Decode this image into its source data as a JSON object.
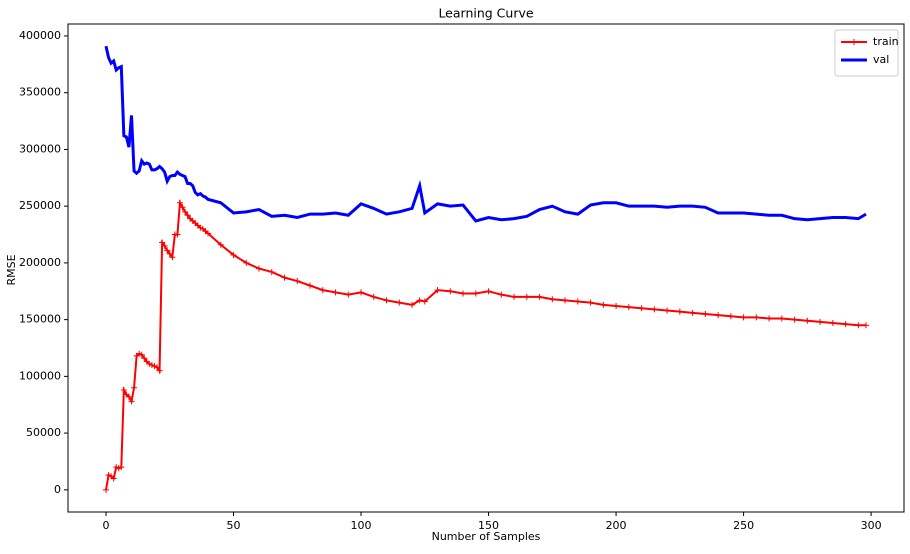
{
  "chart_data": {
    "type": "line",
    "title": "Learning Curve",
    "x_label": "Number of Samples",
    "y_label": "RMSE",
    "x": [
      0,
      1,
      2,
      3,
      4,
      5,
      6,
      7,
      8,
      9,
      10,
      11,
      12,
      13,
      14,
      15,
      16,
      17,
      18,
      19,
      20,
      21,
      22,
      23,
      24,
      25,
      26,
      27,
      28,
      29,
      30,
      31,
      32,
      33,
      34,
      35,
      36,
      37,
      38,
      39,
      40,
      45,
      50,
      55,
      60,
      65,
      70,
      75,
      80,
      85,
      90,
      95,
      100,
      105,
      110,
      115,
      120,
      123,
      125,
      130,
      135,
      140,
      145,
      150,
      155,
      160,
      165,
      170,
      175,
      180,
      185,
      190,
      195,
      200,
      205,
      210,
      215,
      220,
      225,
      230,
      235,
      240,
      245,
      250,
      255,
      260,
      265,
      270,
      275,
      280,
      285,
      290,
      295,
      298
    ],
    "series": [
      {
        "name": "train",
        "color": "#ff0000",
        "marker": "+",
        "values": [
          0,
          13000,
          12000,
          10000,
          20000,
          19000,
          20000,
          88000,
          84000,
          82000,
          78000,
          90000,
          118000,
          120000,
          119000,
          116000,
          113000,
          111000,
          110000,
          109000,
          108000,
          105000,
          218000,
          215000,
          211000,
          208000,
          205000,
          225000,
          225000,
          253000,
          249000,
          245000,
          242000,
          239000,
          237000,
          235000,
          233000,
          231000,
          230000,
          228000,
          226000,
          216000,
          207000,
          200000,
          195000,
          192000,
          187000,
          184000,
          180000,
          176000,
          174000,
          172000,
          174000,
          170000,
          167000,
          165000,
          163000,
          167000,
          166000,
          176000,
          175000,
          173000,
          173000,
          175000,
          172000,
          170000,
          170000,
          170000,
          168000,
          167000,
          166000,
          165000,
          163000,
          162000,
          161000,
          160000,
          159000,
          158000,
          157000,
          156000,
          155000,
          154000,
          153000,
          152000,
          152000,
          151000,
          151000,
          150000,
          149000,
          148000,
          147000,
          146000,
          145000,
          145000
        ]
      },
      {
        "name": "val",
        "color": "#0000ff",
        "values": [
          391000,
          381000,
          376000,
          378000,
          370000,
          372000,
          373000,
          312000,
          311000,
          302000,
          330000,
          281000,
          279000,
          281000,
          290000,
          287000,
          288000,
          287000,
          282000,
          282000,
          283000,
          285000,
          283000,
          280000,
          272000,
          276000,
          277000,
          277000,
          280000,
          278000,
          277000,
          276000,
          270000,
          270000,
          268000,
          262000,
          260000,
          261000,
          259000,
          258000,
          256000,
          253000,
          244000,
          245000,
          247000,
          241000,
          242000,
          240000,
          243000,
          243000,
          244000,
          242000,
          252000,
          248000,
          243000,
          245000,
          248000,
          268000,
          244000,
          252000,
          250000,
          251000,
          237000,
          240000,
          238000,
          239000,
          241000,
          247000,
          250000,
          245000,
          243000,
          251000,
          253000,
          253000,
          250000,
          250000,
          250000,
          249000,
          250000,
          250000,
          249000,
          244000,
          244000,
          244000,
          243000,
          242000,
          242000,
          239000,
          238000,
          239000,
          240000,
          240000,
          239000,
          243000
        ]
      }
    ],
    "xlim": [
      -14.9,
      312.9
    ],
    "ylim": [
      -19550,
      410550
    ],
    "xticks": [
      0,
      50,
      100,
      150,
      200,
      250,
      300
    ],
    "yticks": [
      0,
      50000,
      100000,
      150000,
      200000,
      250000,
      300000,
      350000,
      400000
    ],
    "legend": "upper right"
  }
}
